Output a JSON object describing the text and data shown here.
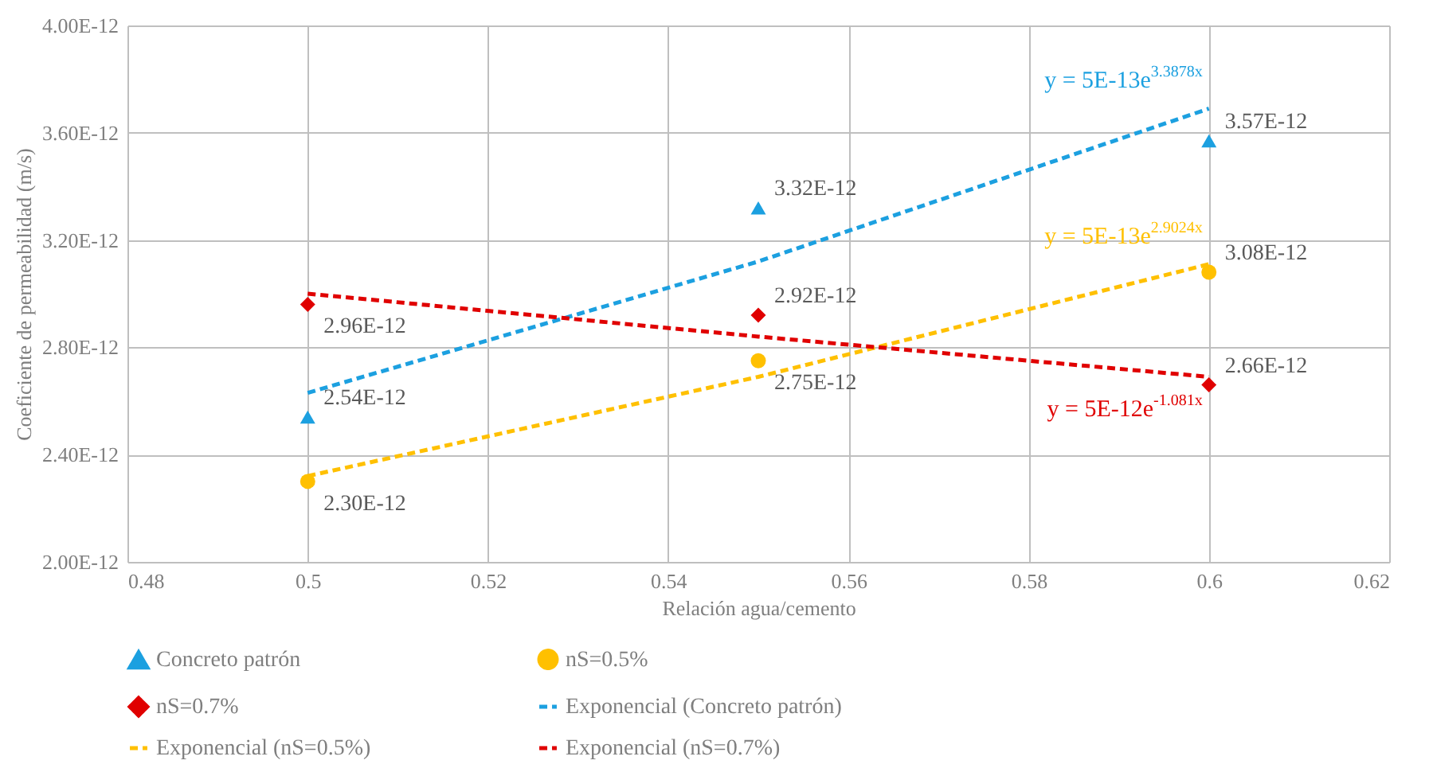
{
  "chart_data": {
    "type": "scatter",
    "xlabel": "Relación agua/cemento",
    "ylabel": "Coeficiente de permeabilidad (m/s)",
    "xlim": [
      0.48,
      0.62
    ],
    "xticks": [
      0.48,
      0.5,
      0.52,
      0.54,
      0.56,
      0.58,
      0.6,
      0.62
    ],
    "ylim": [
      2e-12,
      4e-12
    ],
    "yticks": [
      {
        "value": 2e-12,
        "label": "2.00E-12"
      },
      {
        "value": 2.4e-12,
        "label": "2.40E-12"
      },
      {
        "value": 2.8e-12,
        "label": "2.80E-12"
      },
      {
        "value": 3.2e-12,
        "label": "3.20E-12"
      },
      {
        "value": 3.6e-12,
        "label": "3.60E-12"
      },
      {
        "value": 4e-12,
        "label": "4.00E-12"
      }
    ],
    "grid": true,
    "legend": "bottom",
    "series": [
      {
        "name": "Concreto patrón",
        "marker": "triangle",
        "color": "#1ca0e0",
        "x": [
          0.5,
          0.55,
          0.6
        ],
        "values": [
          2.54e-12,
          3.32e-12,
          3.57e-12
        ],
        "value_labels": [
          "2.54E-12",
          "3.32E-12",
          "3.57E-12"
        ]
      },
      {
        "name": "nS=0.5%",
        "marker": "circle",
        "color": "#ffc000",
        "x": [
          0.5,
          0.55,
          0.6
        ],
        "values": [
          2.3e-12,
          2.75e-12,
          3.08e-12
        ],
        "value_labels": [
          "2.30E-12",
          "2.75E-12",
          "3.08E-12"
        ]
      },
      {
        "name": "nS=0.7%",
        "marker": "diamond",
        "color": "#e00000",
        "x": [
          0.5,
          0.55,
          0.6
        ],
        "values": [
          2.96e-12,
          2.92e-12,
          2.66e-12
        ],
        "value_labels": [
          "2.96E-12",
          "2.92E-12",
          "2.66E-12"
        ]
      },
      {
        "name": "Exponencial (Concreto patrón)",
        "type": "line",
        "line_style": "dashed",
        "color": "#1ca0e0",
        "x": [
          0.5,
          0.55,
          0.6
        ],
        "values": [
          2.63e-12,
          3.12e-12,
          3.69e-12
        ]
      },
      {
        "name": "Exponencial (nS=0.5%)",
        "type": "line",
        "line_style": "dashed",
        "color": "#ffc000",
        "x": [
          0.5,
          0.55,
          0.6
        ],
        "values": [
          2.32e-12,
          2.69e-12,
          3.11e-12
        ]
      },
      {
        "name": "Exponencial (nS=0.7%)",
        "type": "line",
        "line_style": "dashed",
        "color": "#e00000",
        "x": [
          0.5,
          0.55,
          0.6
        ],
        "values": [
          3e-12,
          2.84e-12,
          2.69e-12
        ]
      }
    ],
    "annotations": [
      "y = 5E-13e$^{3.3878x}$",
      "y = 5E-13e$^{2.9024x}$",
      "y = 5E-12e$^{-1.081x}$"
    ]
  }
}
